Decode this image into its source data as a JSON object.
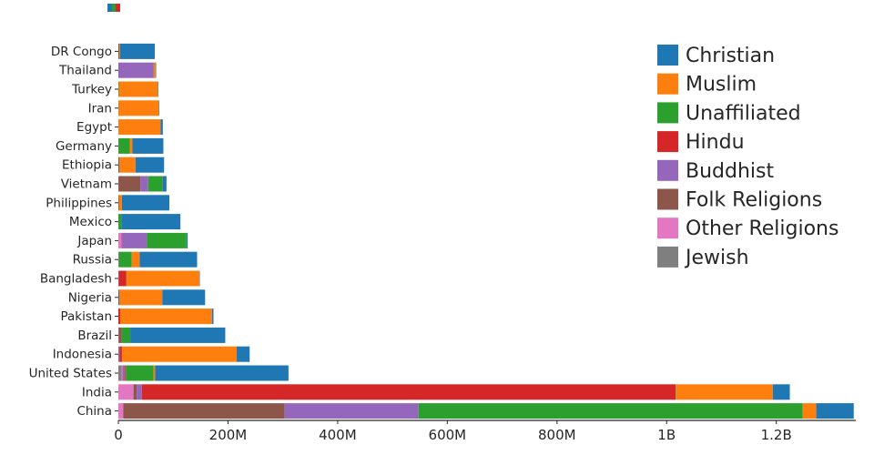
{
  "chart_data": {
    "type": "bar",
    "orientation": "horizontal",
    "stacked": true,
    "title": "",
    "xlabel": "",
    "ylabel": "",
    "unit": "people",
    "value_scale": "millions",
    "grid": false,
    "x_axis": {
      "max": 1345,
      "ticks": [
        {
          "value": 0,
          "label": "0"
        },
        {
          "value": 200,
          "label": "200M"
        },
        {
          "value": 400,
          "label": "400M"
        },
        {
          "value": 600,
          "label": "600M"
        },
        {
          "value": 800,
          "label": "800M"
        },
        {
          "value": 1000,
          "label": "1B"
        },
        {
          "value": 1200,
          "label": "1.2B"
        }
      ]
    },
    "legend": {
      "position": "upper-right",
      "entries": [
        "Christian",
        "Muslim",
        "Unaffiliated",
        "Hindu",
        "Buddhist",
        "Folk Religions",
        "Other Religions",
        "Jewish"
      ]
    },
    "stack_order": [
      "Jewish",
      "Other Religions",
      "Folk Religions",
      "Buddhist",
      "Hindu",
      "Unaffiliated",
      "Muslim",
      "Christian"
    ],
    "categories": [
      "DR Congo",
      "Thailand",
      "Turkey",
      "Iran",
      "Egypt",
      "Germany",
      "Ethiopia",
      "Vietnam",
      "Philippines",
      "Mexico",
      "Japan",
      "Russia",
      "Bangladesh",
      "Nigeria",
      "Pakistan",
      "Brazil",
      "Indonesia",
      "United States",
      "India",
      "China"
    ],
    "series": [
      {
        "name": "Christian",
        "color": "#1f77b4",
        "values": [
          63.2,
          0.6,
          0.3,
          0.1,
          4.1,
          56.5,
          52.1,
          7.2,
          86.4,
          107.8,
          2.0,
          104.8,
          0.7,
          78.1,
          2.8,
          173.3,
          23.7,
          243.1,
          31.1,
          68.4
        ]
      },
      {
        "name": "Muslim",
        "color": "#ff7f0e",
        "values": [
          1.0,
          3.8,
          71.3,
          73.6,
          76.8,
          4.8,
          28.7,
          0.2,
          5.1,
          0,
          0.2,
          14.3,
          133.5,
          77.3,
          167.4,
          0,
          209.1,
          2.8,
          176.2,
          24.7
        ]
      },
      {
        "name": "Unaffiliated",
        "color": "#2ca02c",
        "values": [
          0.5,
          0.2,
          0.9,
          0.1,
          0.2,
          20.3,
          0.5,
          26.0,
          0.1,
          5.3,
          72.1,
          23.2,
          0.1,
          0.6,
          0,
          15.4,
          0.2,
          50.6,
          0.9,
          700.7
        ]
      },
      {
        "name": "Hindu",
        "color": "#d62728",
        "values": [
          0,
          0,
          0,
          0,
          0,
          0,
          0,
          0,
          0,
          0,
          0,
          0,
          13.5,
          0,
          3.3,
          0,
          4.1,
          1.9,
          973.8,
          0
        ]
      },
      {
        "name": "Buddhist",
        "color": "#9467bd",
        "values": [
          0,
          64.4,
          0,
          0,
          0,
          0.3,
          0,
          14.4,
          0,
          0,
          45.8,
          0.7,
          0.7,
          0,
          0,
          0.2,
          1.7,
          3.7,
          9.3,
          244.1
        ]
      },
      {
        "name": "Folk Religions",
        "color": "#8c564b",
        "values": [
          1.7,
          0.1,
          0,
          0,
          0,
          0,
          2.1,
          39.8,
          1.4,
          0,
          0.5,
          0.3,
          0.2,
          2.2,
          0,
          5.5,
          0.7,
          0.6,
          5.8,
          294.3
        ]
      },
      {
        "name": "Other Religions",
        "color": "#e377c2",
        "values": [
          0,
          0,
          0,
          0.2,
          0,
          0,
          0,
          0.2,
          0,
          0.1,
          5.9,
          0,
          0,
          0,
          0,
          0.5,
          0,
          1.9,
          27.6,
          9.1
        ]
      },
      {
        "name": "Jewish",
        "color": "#7f7f7f",
        "values": [
          0,
          0,
          0,
          0,
          0,
          0.2,
          0,
          0,
          0,
          0,
          0,
          0.3,
          0,
          0,
          0,
          0.1,
          0,
          5.7,
          0,
          0
        ]
      }
    ]
  },
  "decor": {
    "cropped_bar_fragment": {
      "segments": [
        {
          "color": "#1f77b4",
          "width": 5
        },
        {
          "color": "#2ca02c",
          "width": 4
        },
        {
          "color": "#d62728",
          "width": 5
        }
      ]
    }
  }
}
